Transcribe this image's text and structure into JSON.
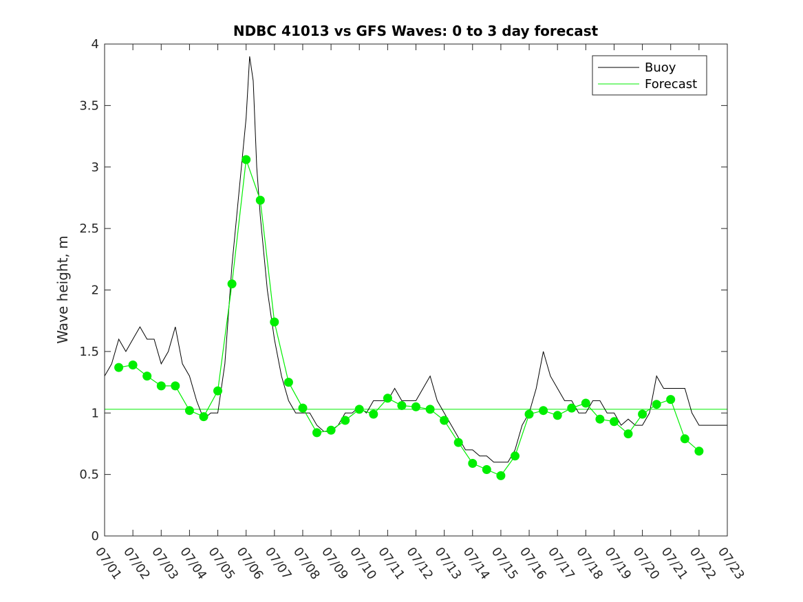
{
  "chart_data": {
    "type": "line",
    "title": "NDBC 41013 vs GFS Waves: 0 to 3 day forecast",
    "xlabel": "",
    "ylabel": "Wave height, m",
    "xlim": [
      "07/01",
      "07/23"
    ],
    "ylim": [
      0,
      4
    ],
    "x_tick_labels": [
      "07/01",
      "07/02",
      "07/03",
      "07/04",
      "07/05",
      "07/06",
      "07/07",
      "07/08",
      "07/09",
      "07/10",
      "07/11",
      "07/12",
      "07/13",
      "07/14",
      "07/15",
      "07/16",
      "07/17",
      "07/18",
      "07/19",
      "07/20",
      "07/21",
      "07/22",
      "07/23"
    ],
    "y_tick_labels": [
      "0",
      "0.5",
      "1",
      "1.5",
      "2",
      "2.5",
      "3",
      "3.5",
      "4"
    ],
    "y_ticks": [
      0,
      0.5,
      1,
      1.5,
      2,
      2.5,
      3,
      3.5,
      4
    ],
    "grid": false,
    "legend": {
      "position": "top-right",
      "entries": [
        "Buoy",
        "Forecast"
      ]
    },
    "colors": {
      "buoy": "#000000",
      "forecast": "#00ee00"
    },
    "reference_line": {
      "y": 1.03
    },
    "series": [
      {
        "name": "Buoy",
        "x": [
          "07/01 00:00",
          "07/01 06:00",
          "07/01 12:00",
          "07/01 18:00",
          "07/02 00:00",
          "07/02 06:00",
          "07/02 12:00",
          "07/02 18:00",
          "07/03 00:00",
          "07/03 06:00",
          "07/03 12:00",
          "07/03 18:00",
          "07/04 00:00",
          "07/04 06:00",
          "07/04 12:00",
          "07/04 18:00",
          "07/05 00:00",
          "07/05 06:00",
          "07/05 12:00",
          "07/05 18:00",
          "07/06 00:00",
          "07/06 03:00",
          "07/06 06:00",
          "07/06 09:00",
          "07/06 12:00",
          "07/06 18:00",
          "07/07 00:00",
          "07/07 06:00",
          "07/07 12:00",
          "07/07 18:00",
          "07/08 00:00",
          "07/08 06:00",
          "07/08 12:00",
          "07/08 18:00",
          "07/09 00:00",
          "07/09 06:00",
          "07/09 12:00",
          "07/09 18:00",
          "07/10 00:00",
          "07/10 06:00",
          "07/10 12:00",
          "07/10 18:00",
          "07/11 00:00",
          "07/11 06:00",
          "07/11 12:00",
          "07/11 18:00",
          "07/12 00:00",
          "07/12 06:00",
          "07/12 12:00",
          "07/12 18:00",
          "07/13 00:00",
          "07/13 06:00",
          "07/13 12:00",
          "07/13 18:00",
          "07/14 00:00",
          "07/14 06:00",
          "07/14 12:00",
          "07/14 18:00",
          "07/15 00:00",
          "07/15 06:00",
          "07/15 12:00",
          "07/15 18:00",
          "07/16 00:00",
          "07/16 06:00",
          "07/16 12:00",
          "07/16 18:00",
          "07/17 00:00",
          "07/17 06:00",
          "07/17 12:00",
          "07/17 18:00",
          "07/18 00:00",
          "07/18 06:00",
          "07/18 12:00",
          "07/18 18:00",
          "07/19 00:00",
          "07/19 06:00",
          "07/19 12:00",
          "07/19 18:00",
          "07/20 00:00",
          "07/20 06:00",
          "07/20 12:00",
          "07/20 18:00",
          "07/21 00:00",
          "07/21 06:00",
          "07/21 12:00",
          "07/21 18:00",
          "07/22 00:00",
          "07/22 06:00",
          "07/22 12:00",
          "07/22 18:00",
          "07/23 00:00"
        ],
        "y": [
          1.3,
          1.4,
          1.6,
          1.5,
          1.6,
          1.7,
          1.6,
          1.6,
          1.4,
          1.5,
          1.7,
          1.4,
          1.3,
          1.1,
          0.95,
          1.0,
          1.0,
          1.4,
          2.2,
          2.8,
          3.4,
          3.9,
          3.7,
          3.0,
          2.6,
          2.0,
          1.6,
          1.3,
          1.1,
          1.0,
          1.0,
          1.0,
          0.9,
          0.85,
          0.85,
          0.9,
          1.0,
          1.0,
          1.05,
          1.0,
          1.1,
          1.1,
          1.1,
          1.2,
          1.1,
          1.1,
          1.1,
          1.2,
          1.3,
          1.1,
          1.0,
          0.9,
          0.8,
          0.7,
          0.7,
          0.65,
          0.65,
          0.6,
          0.6,
          0.6,
          0.7,
          0.9,
          1.0,
          1.2,
          1.5,
          1.3,
          1.2,
          1.1,
          1.1,
          1.0,
          1.0,
          1.1,
          1.1,
          1.0,
          1.0,
          0.9,
          0.95,
          0.9,
          0.9,
          1.0,
          1.3,
          1.2,
          1.2,
          1.2,
          1.2,
          1.0,
          0.9,
          0.9,
          0.9,
          0.9,
          0.9
        ]
      },
      {
        "name": "Forecast",
        "x": [
          "07/01 12:00",
          "07/02 00:00",
          "07/02 12:00",
          "07/03 00:00",
          "07/03 12:00",
          "07/04 00:00",
          "07/04 12:00",
          "07/05 00:00",
          "07/05 12:00",
          "07/06 00:00",
          "07/06 12:00",
          "07/07 00:00",
          "07/07 12:00",
          "07/08 00:00",
          "07/08 12:00",
          "07/09 00:00",
          "07/09 12:00",
          "07/10 00:00",
          "07/10 12:00",
          "07/11 00:00",
          "07/11 12:00",
          "07/12 00:00",
          "07/12 12:00",
          "07/13 00:00",
          "07/13 12:00",
          "07/14 00:00",
          "07/14 12:00",
          "07/15 00:00",
          "07/15 12:00",
          "07/16 00:00",
          "07/16 12:00",
          "07/17 00:00",
          "07/17 12:00",
          "07/18 00:00",
          "07/18 12:00",
          "07/19 00:00",
          "07/19 12:00",
          "07/20 00:00",
          "07/20 12:00",
          "07/21 00:00",
          "07/21 12:00",
          "07/22 00:00"
        ],
        "y": [
          1.37,
          1.39,
          1.3,
          1.22,
          1.22,
          1.02,
          0.97,
          1.18,
          2.05,
          3.06,
          2.73,
          1.74,
          1.25,
          1.04,
          0.84,
          0.86,
          0.94,
          1.03,
          0.99,
          1.12,
          1.06,
          1.05,
          1.03,
          0.94,
          0.76,
          0.59,
          0.54,
          0.49,
          0.65,
          0.99,
          1.02,
          0.98,
          1.04,
          1.08,
          0.95,
          0.93,
          0.83,
          0.99,
          1.07,
          1.11,
          0.79,
          0.69
        ]
      }
    ]
  }
}
